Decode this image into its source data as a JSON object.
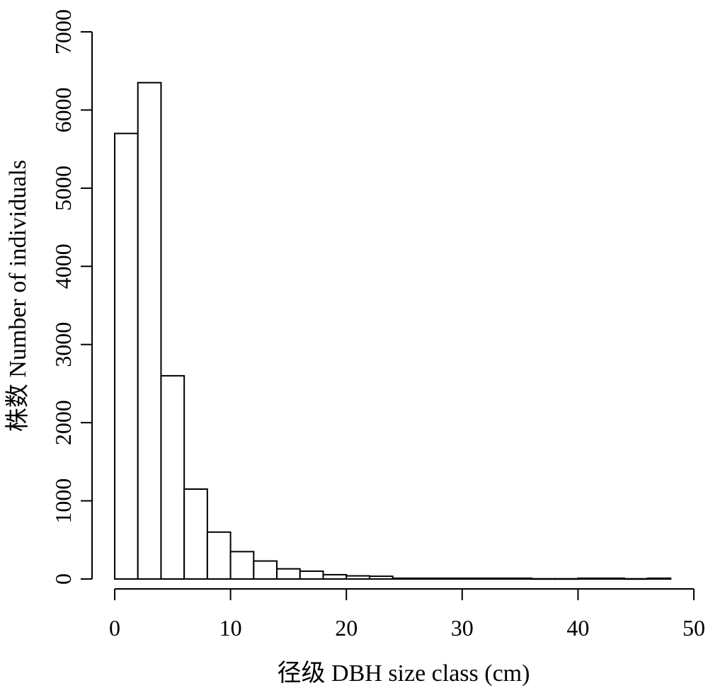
{
  "chart_data": {
    "type": "bar",
    "title": "",
    "xlabel": "径级 DBH size class (cm)",
    "ylabel": "株数 Number of individuals",
    "bin_width": 2,
    "xlim": [
      0,
      50
    ],
    "ylim": [
      0,
      7000
    ],
    "x": [
      1,
      3,
      5,
      7,
      9,
      11,
      13,
      15,
      17,
      19,
      21,
      23,
      25,
      27,
      29,
      31,
      33,
      35,
      37,
      39,
      41,
      43,
      45,
      47
    ],
    "values": [
      5700,
      6350,
      2600,
      1150,
      600,
      350,
      230,
      130,
      100,
      55,
      40,
      35,
      10,
      10,
      10,
      10,
      10,
      10,
      3,
      3,
      10,
      10,
      3,
      10
    ],
    "x_ticks": [
      0,
      10,
      20,
      30,
      40,
      50
    ],
    "y_ticks": [
      0,
      1000,
      2000,
      3000,
      4000,
      5000,
      6000,
      7000
    ],
    "grid": false,
    "legend": "none"
  }
}
